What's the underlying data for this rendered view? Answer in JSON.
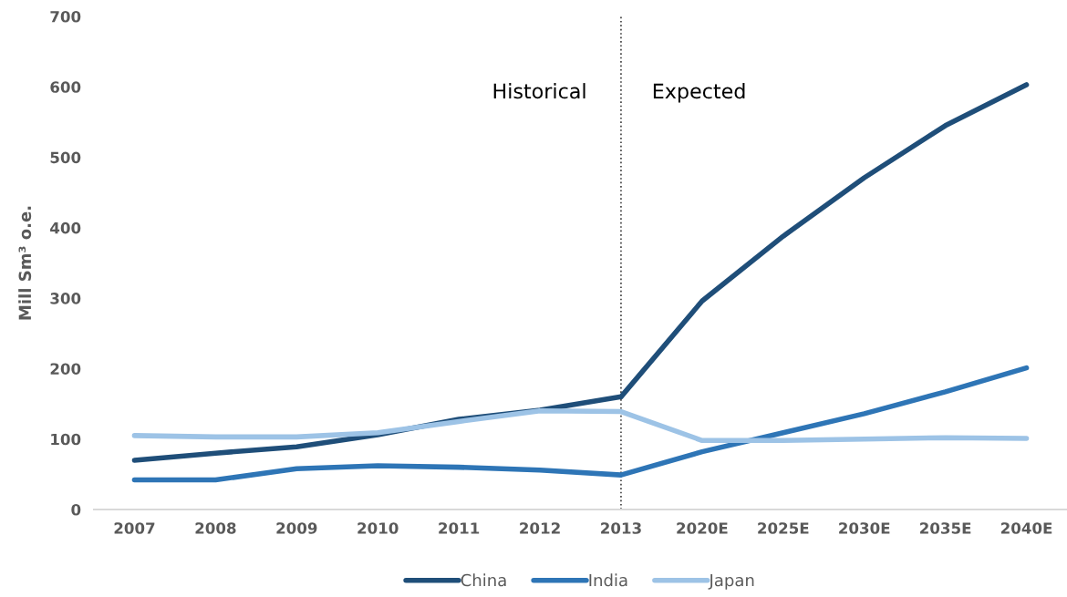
{
  "chart_data": {
    "type": "line",
    "categories": [
      "2007",
      "2008",
      "2009",
      "2010",
      "2011",
      "2012",
      "2013",
      "2020E",
      "2025E",
      "2030E",
      "2035E",
      "2040E"
    ],
    "series": [
      {
        "name": "China",
        "color": "#1f4e79",
        "values": [
          70,
          80,
          89,
          106,
          128,
          141,
          160,
          296,
          388,
          471,
          545,
          603
        ]
      },
      {
        "name": "India",
        "color": "#2e75b6",
        "values": [
          42,
          42,
          58,
          62,
          60,
          56,
          49,
          82,
          109,
          136,
          167,
          201
        ]
      },
      {
        "name": "Japan",
        "color": "#9dc3e6",
        "values": [
          105,
          103,
          103,
          109,
          125,
          140,
          139,
          98,
          98,
          100,
          102,
          101
        ]
      }
    ],
    "ylabel": "Mill Sm³ o.e.",
    "ylim": [
      0,
      700
    ],
    "yticks": [
      0,
      100,
      200,
      300,
      400,
      500,
      600,
      700
    ],
    "ref_lines": [
      {
        "axis": "x",
        "value": "2013",
        "color": "#404040",
        "line_style": "dotted"
      }
    ],
    "annotations": [
      "Historical",
      "Expected"
    ],
    "grid": false,
    "legend": "bottom",
    "marker": "none",
    "line_style": "solid"
  }
}
